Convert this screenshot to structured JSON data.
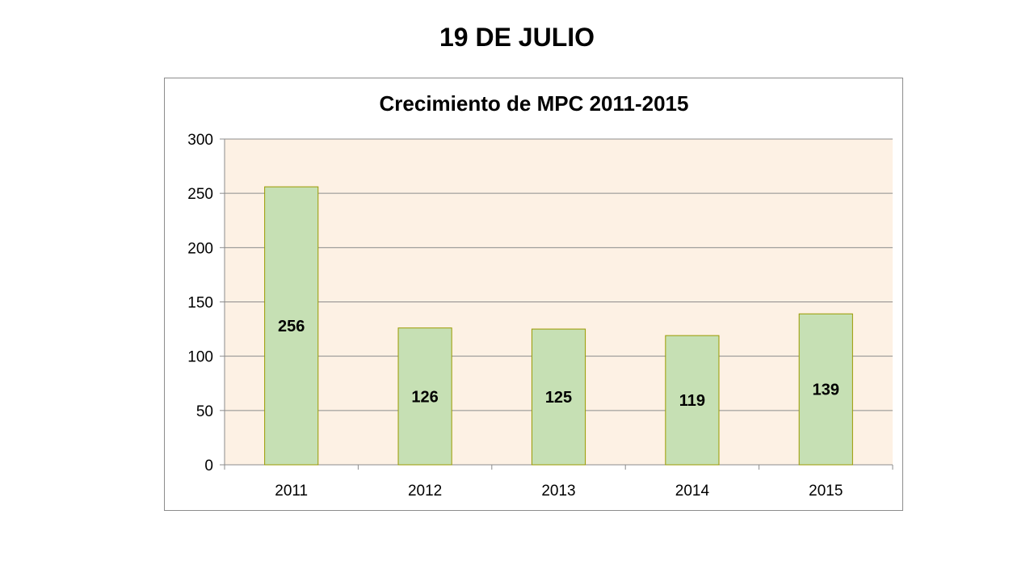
{
  "slide": {
    "title": "19 DE JULIO"
  },
  "chart_data": {
    "type": "bar",
    "title": "Crecimiento de MPC 2011-2015",
    "xlabel": "",
    "ylabel": "",
    "categories": [
      "2011",
      "2012",
      "2013",
      "2014",
      "2015"
    ],
    "values": [
      256,
      126,
      125,
      119,
      139
    ],
    "data_labels": [
      "256",
      "126",
      "125",
      "119",
      "139"
    ],
    "ylim": [
      0,
      300
    ],
    "yticks": [
      0,
      50,
      100,
      150,
      200,
      250,
      300
    ],
    "grid": true,
    "legend": "none",
    "colors": {
      "bar_fill": "#c6e0b4",
      "bar_stroke": "#9a9a00",
      "plot_background": "#fdf1e4",
      "gridline": "#8c8c8c"
    }
  }
}
